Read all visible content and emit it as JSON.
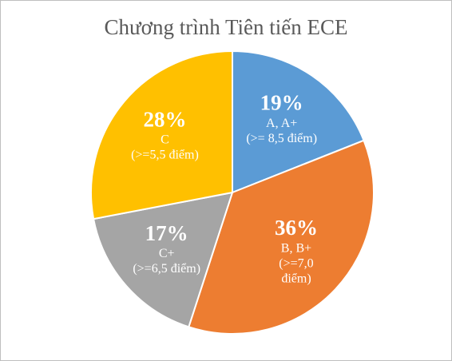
{
  "chart_data": {
    "type": "pie",
    "title": "Chương trình Tiên tiến ECE",
    "categories": [
      [
        "A, A+",
        "(>= 8,5 điểm)"
      ],
      [
        "B, B+",
        "(>=7,0",
        "điểm)"
      ],
      [
        "C+",
        "(>=6,5 điểm)"
      ],
      [
        "C",
        "(>=5,5 điểm)"
      ]
    ],
    "values": [
      19,
      36,
      17,
      28
    ],
    "value_labels": [
      "19%",
      "36%",
      "17%",
      "28%"
    ],
    "colors": [
      "#5b9bd5",
      "#ed7d31",
      "#a5a5a5",
      "#ffc000"
    ]
  }
}
